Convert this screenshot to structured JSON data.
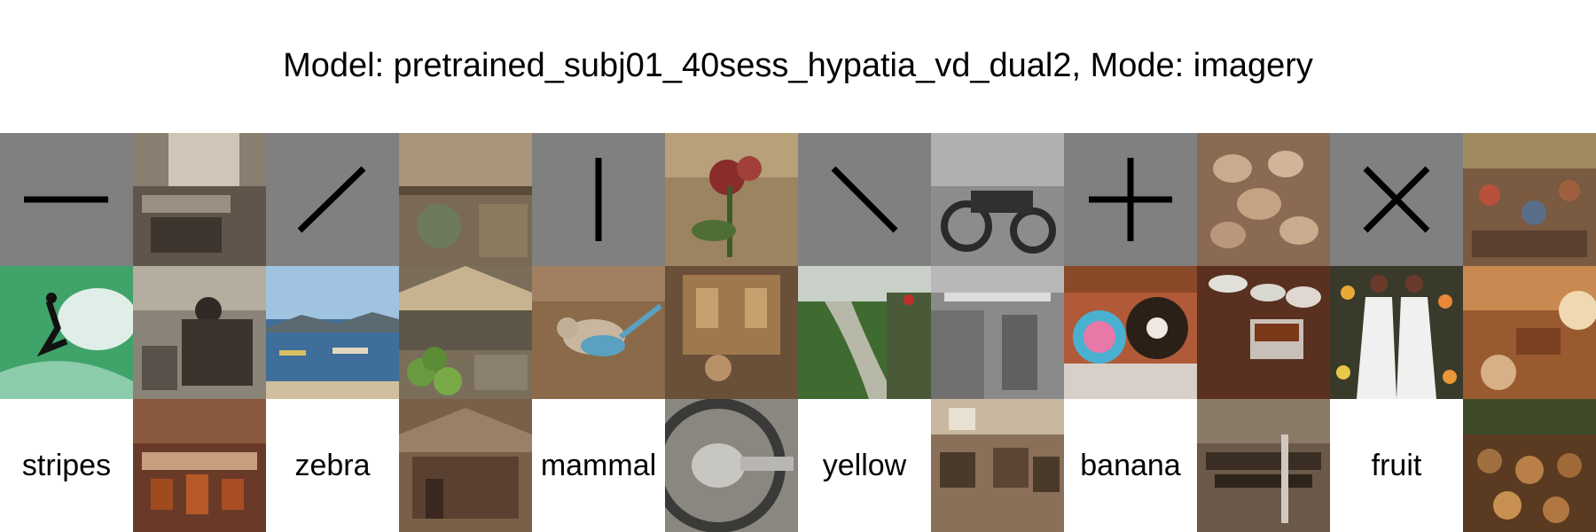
{
  "title": "Model: pretrained_subj01_40sess_hypatia_vd_dual2, Mode: imagery",
  "stimuli": [
    {
      "icon": "horizontal-line-icon",
      "color": "#000000"
    },
    {
      "icon": "diagonal-forward-line-icon",
      "color": "#000000"
    },
    {
      "icon": "vertical-line-icon",
      "color": "#000000"
    },
    {
      "icon": "diagonal-back-line-icon",
      "color": "#000000"
    },
    {
      "icon": "plus-icon",
      "color": "#000000"
    },
    {
      "icon": "x-cross-icon",
      "color": "#000000"
    }
  ],
  "words": [
    "stripes",
    "zebra",
    "mammal",
    "yellow",
    "banana",
    "fruit"
  ],
  "colors": {
    "stimulus_background": "#808080",
    "word_background": "#ffffff",
    "page_background": "#ffffff"
  }
}
